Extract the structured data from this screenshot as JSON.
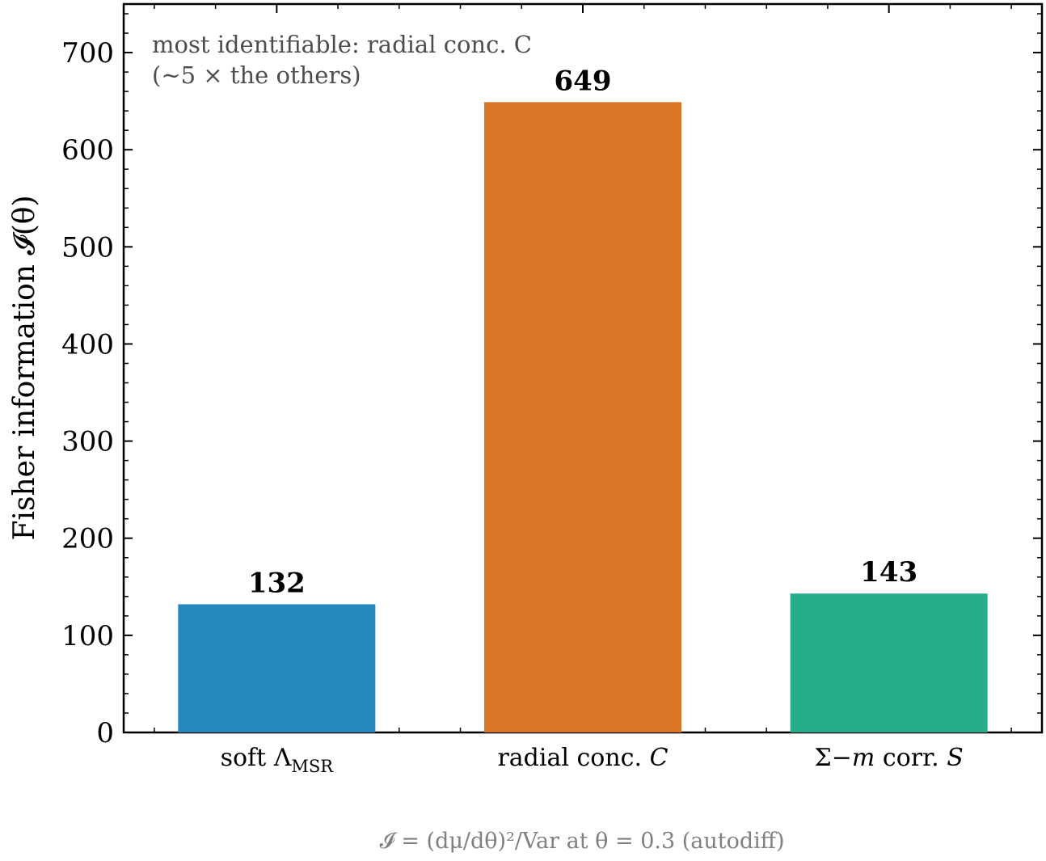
{
  "chart_data": {
    "type": "bar",
    "categories": [
      "soft Λ_MSR",
      "radial conc. C",
      "Σ−m corr. S"
    ],
    "category_labels": [
      {
        "main": "soft Λ",
        "sub": "MSR"
      },
      {
        "main": "radial conc. ",
        "italic": "C"
      },
      {
        "main": "Σ−",
        "italic_mid": "m",
        "rest": " corr. ",
        "italic": "S"
      }
    ],
    "values": [
      132,
      649,
      143
    ],
    "value_labels": [
      "132",
      "649",
      "143"
    ],
    "colors": [
      "#2788bd",
      "#d97627",
      "#26ad89"
    ],
    "ylim": [
      0,
      750
    ],
    "yticks": [
      0,
      100,
      200,
      300,
      400,
      500,
      600,
      700
    ],
    "ylabel": "Fisher information 𝓘(θ)",
    "xlabel": "𝓘 = (dμ/dθ)²/Var at θ = 0.3 (autodiff)",
    "annotation": [
      "most identifiable: radial conc. C",
      "(∼5 ×  the others)"
    ],
    "legend": "none",
    "grid": false
  }
}
